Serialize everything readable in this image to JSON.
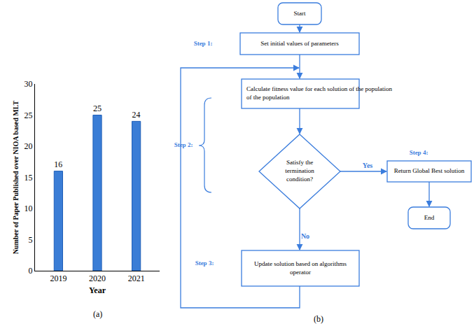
{
  "chart_data": {
    "type": "bar",
    "caption": "(a)",
    "categories": [
      "2019",
      "2020",
      "2021"
    ],
    "values": [
      16,
      25,
      24
    ],
    "color": "#3a7dd6",
    "x_label": "Year",
    "y_label": "Number of Paper Published over NIOA based MLT",
    "ylim": [
      0,
      30
    ],
    "yticks": [
      0,
      5,
      10,
      15,
      20,
      25,
      30
    ],
    "grid": false,
    "data_labels": true
  },
  "diagram": {
    "caption": "(b)",
    "nodes": [
      {
        "lines": [
          "Start"
        ]
      },
      {
        "lines": [
          "Set initial values of parameters"
        ]
      },
      {
        "lines": [
          "Calculate fitness value for each solution of the population",
          "of the population"
        ]
      },
      {
        "lines": [
          "Satisfy the",
          "termination",
          "condition?"
        ]
      },
      {
        "lines": [
          "Return Global Best solution"
        ]
      },
      {
        "lines": [
          "End"
        ]
      },
      {
        "lines": [
          "Update solution based on algorithms",
          "operator"
        ]
      }
    ],
    "steps": [
      "Step 1:",
      "Step 2:",
      "Step 3:",
      "Step 4:"
    ],
    "branch_labels": {
      "yes": "Yes",
      "no": "No"
    }
  }
}
